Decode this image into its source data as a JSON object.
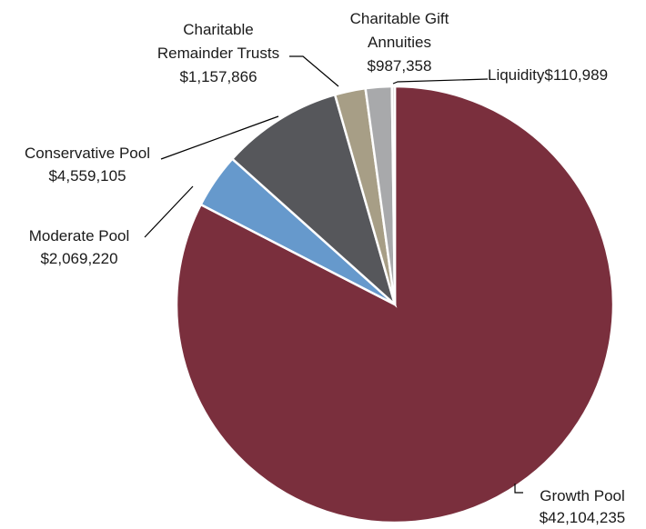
{
  "chart_data": {
    "type": "pie",
    "title": "",
    "start_angle_deg": 0,
    "direction": "clockwise",
    "slices": [
      {
        "label": "Growth Pool",
        "value": 42104235,
        "value_text": "$42,104,235",
        "color": "#7a2f3d"
      },
      {
        "label": "Moderate Pool",
        "value": 2069220,
        "value_text": "$2,069,220",
        "color": "#6699cc"
      },
      {
        "label": "Conservative Pool",
        "value": 4559105,
        "value_text": "$4,559,105",
        "color": "#56575b"
      },
      {
        "label": "Charitable Remainder Trusts",
        "value": 1157866,
        "value_text": "$1,157,866",
        "color": "#a79e86"
      },
      {
        "label": "Charitable Gift Annuities",
        "value": 987358,
        "value_text": "$987,358",
        "color": "#a8a9ab"
      },
      {
        "label": "Liquidity",
        "value": 110989,
        "value_text": "$110,989",
        "color": "#d7d7d7"
      }
    ]
  }
}
